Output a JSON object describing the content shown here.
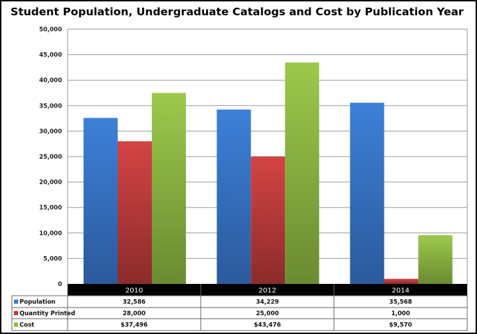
{
  "chart_data": {
    "type": "bar",
    "title": "Student Population, Undergraduate Catalogs and Cost by Publication Year",
    "categories": [
      "2010",
      "2012",
      "2014"
    ],
    "series": [
      {
        "name": "Population",
        "values": [
          32586,
          34229,
          35568
        ],
        "labels": [
          "32,586",
          "34,229",
          "35,568"
        ],
        "color": "#3b78c9"
      },
      {
        "name": "Quantity Printed",
        "values": [
          28000,
          25000,
          1000
        ],
        "labels": [
          "28,000",
          "25,000",
          "1,000"
        ],
        "color": "#c43a3a"
      },
      {
        "name": "Cost",
        "values": [
          37496,
          43476,
          9570
        ],
        "labels": [
          "$37,496",
          "$43,476",
          "$9,570"
        ],
        "color": "#8cba3e"
      }
    ],
    "ylim": [
      0,
      50000
    ],
    "yticks": [
      "0",
      "5,000",
      "10,000",
      "15,000",
      "20,000",
      "25,000",
      "30,000",
      "35,000",
      "40,000",
      "45,000",
      "50,000"
    ],
    "grid": true,
    "legend": "data-table"
  }
}
